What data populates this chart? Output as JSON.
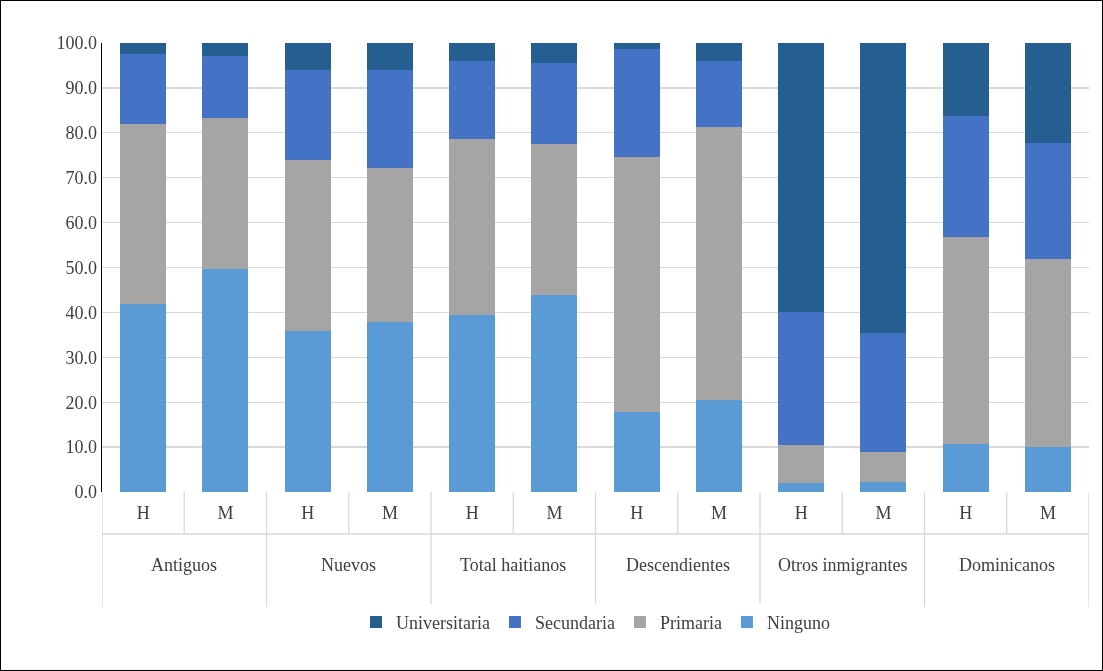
{
  "chart_data": {
    "type": "bar",
    "stacked": true,
    "categories": [
      "H",
      "M",
      "H",
      "M",
      "H",
      "M",
      "H",
      "M",
      "H",
      "M",
      "H",
      "M"
    ],
    "annotations": [
      "Antiguos",
      "Nuevos",
      "Total haitianos",
      "Descendientes",
      "Otros inmigrantes",
      "Dominicanos"
    ],
    "series": [
      {
        "name": "Ninguno",
        "color": "#5b9bd5",
        "values": [
          41.9,
          49.7,
          35.9,
          37.9,
          39.5,
          43.8,
          17.8,
          20.4,
          1.9,
          2.2,
          10.7,
          10.1
        ]
      },
      {
        "name": "Primaria",
        "color": "#a5a5a5",
        "values": [
          40.1,
          33.6,
          38.0,
          34.3,
          39.2,
          33.7,
          56.9,
          60.8,
          8.5,
          6.8,
          46.2,
          41.7
        ]
      },
      {
        "name": "Secundaria",
        "color": "#4472c4",
        "values": [
          15.6,
          13.7,
          20.1,
          21.8,
          17.4,
          18.0,
          23.9,
          14.9,
          29.7,
          26.5,
          26.8,
          26.0
        ]
      },
      {
        "name": "Universitaria",
        "color": "#255e91",
        "values": [
          2.4,
          3.0,
          6.0,
          6.0,
          3.9,
          4.5,
          1.4,
          3.9,
          59.9,
          64.5,
          16.3,
          22.2
        ]
      }
    ],
    "ylim": [
      0,
      100
    ],
    "yticks": [
      {
        "value": 0,
        "label": "0.0"
      },
      {
        "value": 10,
        "label": "10.0"
      },
      {
        "value": 20,
        "label": "20.0"
      },
      {
        "value": 30,
        "label": "30.0"
      },
      {
        "value": 40,
        "label": "40.0"
      },
      {
        "value": 50,
        "label": "50.0"
      },
      {
        "value": 60,
        "label": "60.0"
      },
      {
        "value": 70,
        "label": "70.0"
      },
      {
        "value": 80,
        "label": "80.0"
      },
      {
        "value": 90,
        "label": "90.0"
      },
      {
        "value": 100,
        "label": "100.0"
      }
    ],
    "grid": "y",
    "legend": "bottom"
  }
}
